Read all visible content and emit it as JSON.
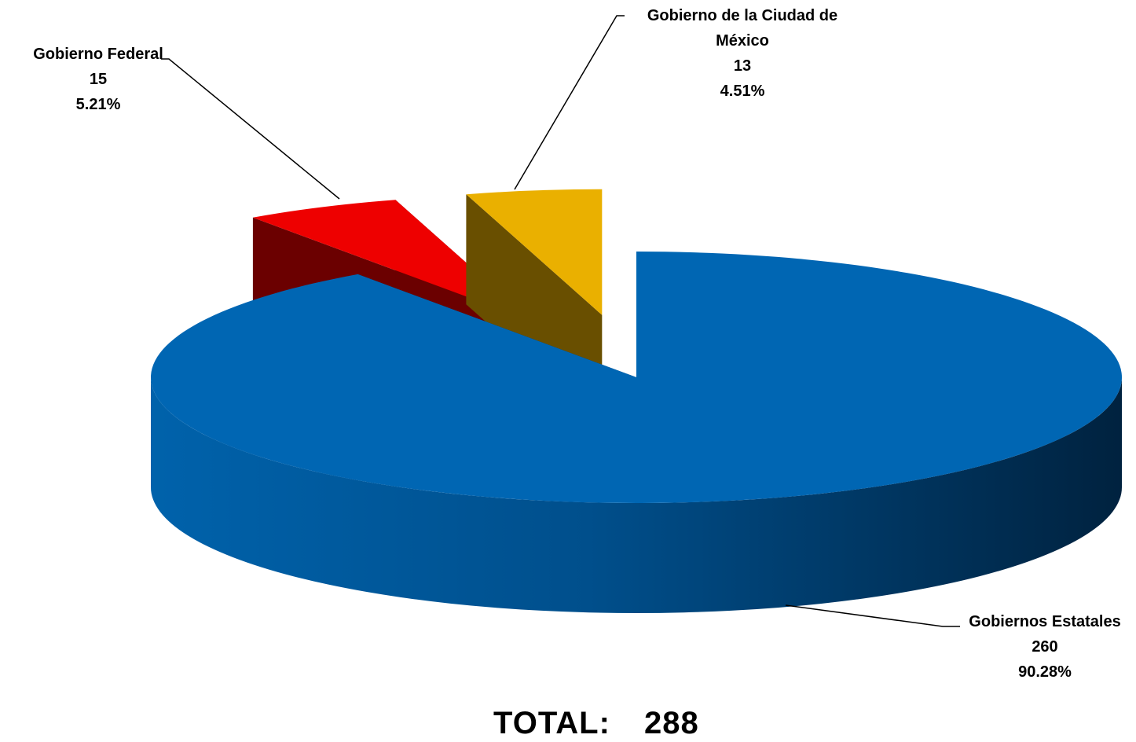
{
  "chart_data": {
    "type": "pie3d",
    "categories": [
      "Gobiernos Estatales",
      "Gobierno Federal",
      "Gobierno de la Ciudad de México"
    ],
    "values": [
      260,
      15,
      13
    ],
    "percent_labels": [
      "90.28%",
      "5.21%",
      "4.51%"
    ],
    "colors": [
      "#0066b3",
      "#ee0000",
      "#eab000"
    ],
    "total_label": "TOTAL:",
    "total": 288
  }
}
